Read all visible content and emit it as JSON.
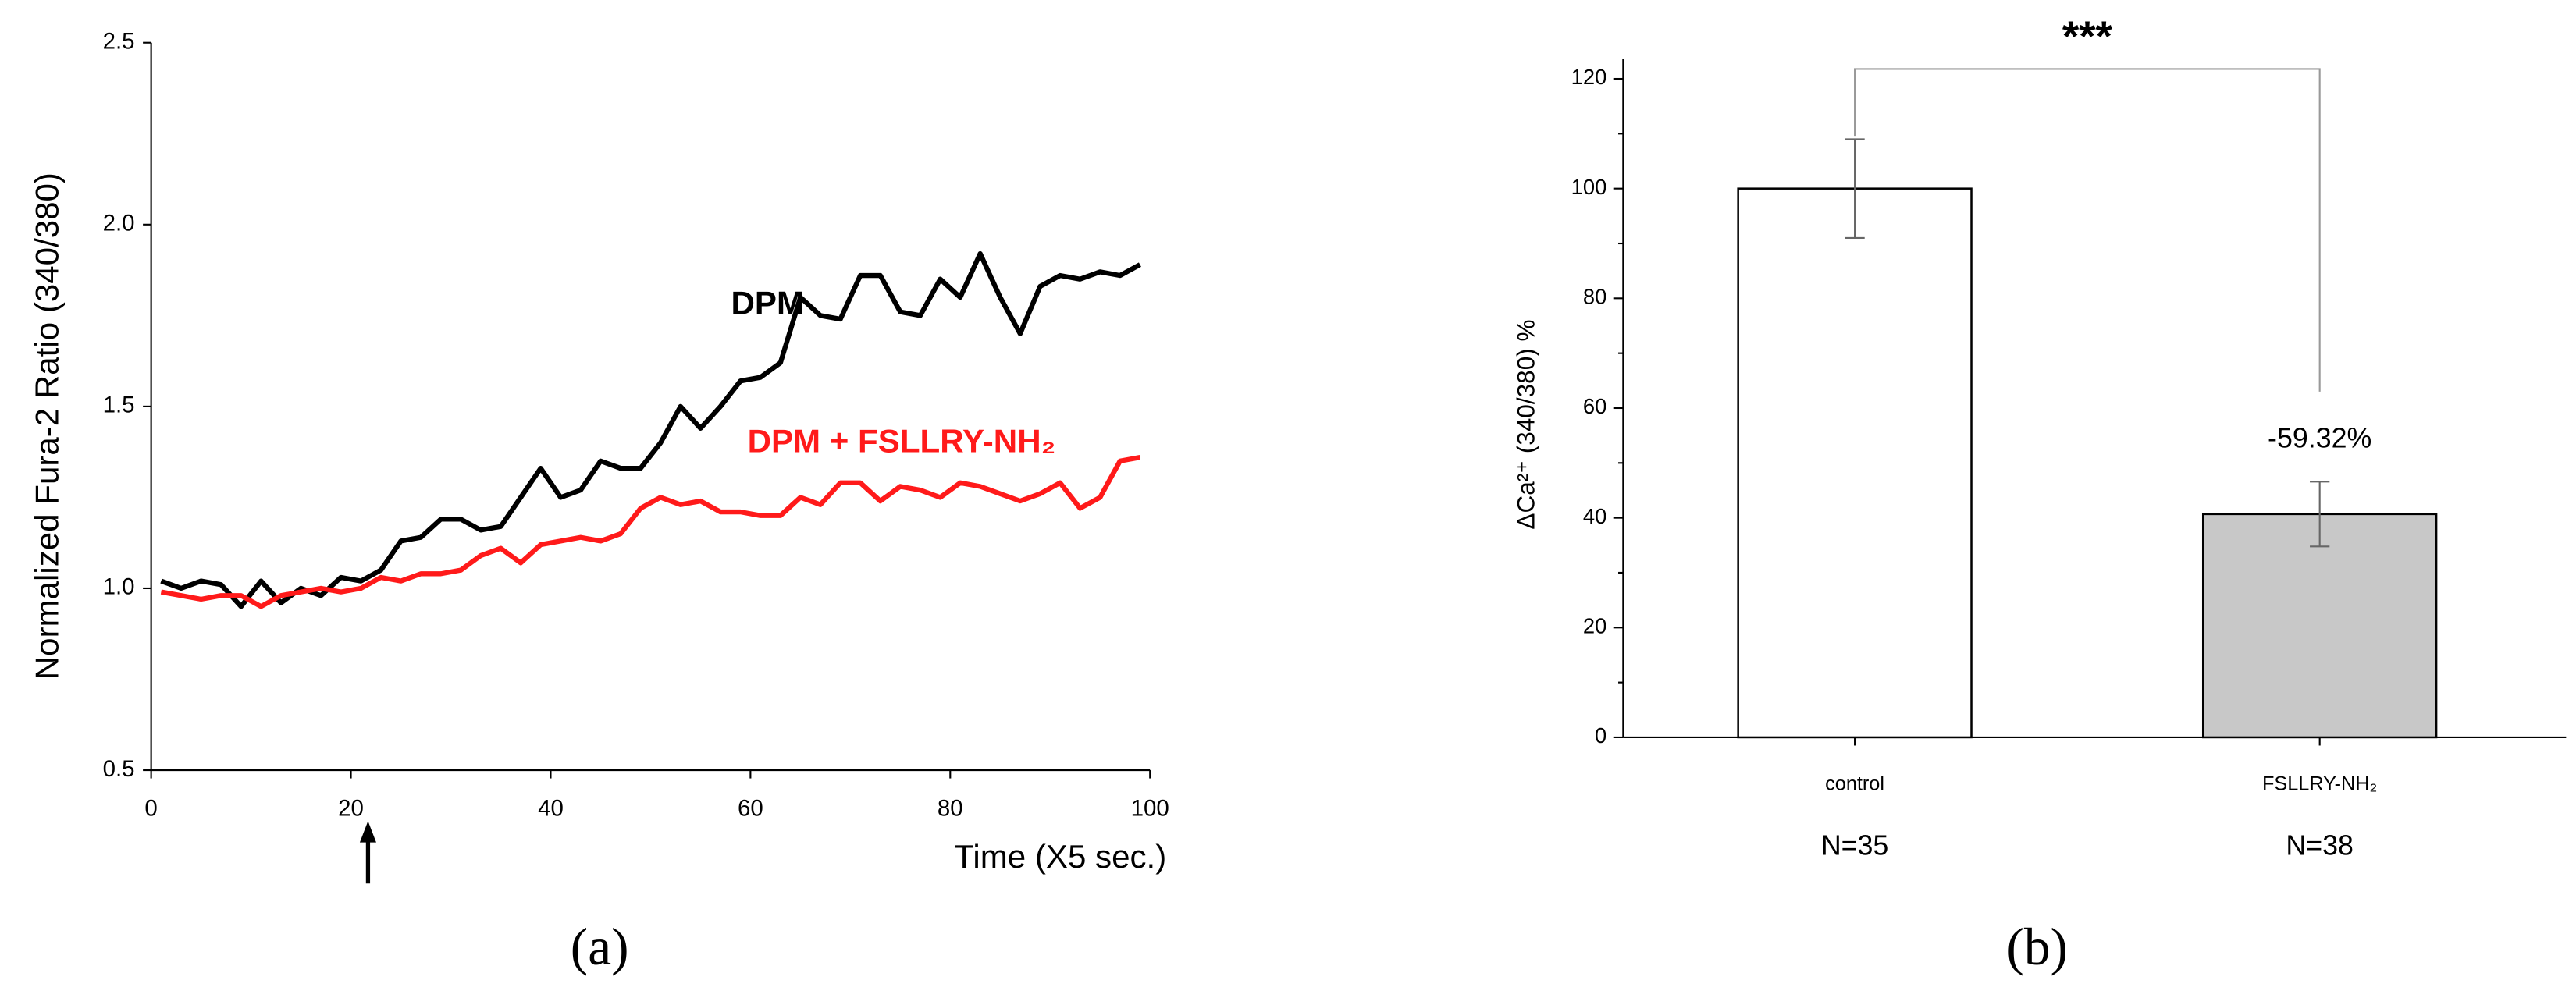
{
  "chart_data": [
    {
      "type": "line",
      "panel_label": "(a)",
      "xlabel": "Time (X5 sec.)",
      "ylabel": "Normalized Fura-2 Ratio (340/380)",
      "xlim": [
        0,
        100
      ],
      "ylim": [
        0.5,
        2.5
      ],
      "xticks": [
        0,
        20,
        40,
        60,
        80,
        100
      ],
      "yticks": [
        0.5,
        {
          "value": 1,
          "label": "1.0"
        },
        1.5,
        {
          "value": 2,
          "label": "2.0"
        },
        2.5
      ],
      "x": [
        1,
        3,
        5,
        7,
        9,
        11,
        13,
        15,
        17,
        19,
        21,
        23,
        25,
        27,
        29,
        31,
        33,
        35,
        37,
        39,
        41,
        43,
        45,
        47,
        49,
        51,
        53,
        55,
        57,
        59,
        61,
        63,
        65,
        67,
        69,
        71,
        73,
        75,
        77,
        79,
        81,
        83,
        85,
        87,
        89,
        91,
        93,
        95,
        97,
        99
      ],
      "series": [
        {
          "name": "DPM",
          "color": "#000000",
          "values": [
            1.02,
            1.0,
            1.02,
            1.01,
            0.95,
            1.02,
            0.96,
            1.0,
            0.98,
            1.03,
            1.02,
            1.05,
            1.13,
            1.14,
            1.19,
            1.19,
            1.16,
            1.17,
            1.25,
            1.33,
            1.25,
            1.27,
            1.35,
            1.33,
            1.33,
            1.4,
            1.5,
            1.44,
            1.5,
            1.57,
            1.58,
            1.62,
            1.8,
            1.75,
            1.74,
            1.86,
            1.86,
            1.76,
            1.75,
            1.85,
            1.8,
            1.92,
            1.8,
            1.7,
            1.83,
            1.86,
            1.85,
            1.87,
            1.86,
            1.89
          ]
        },
        {
          "name": "DPM + FSLLRY-NH₂",
          "color": "#ff1a1a",
          "values": [
            0.99,
            0.98,
            0.97,
            0.98,
            0.98,
            0.95,
            0.98,
            0.99,
            1.0,
            0.99,
            1.0,
            1.03,
            1.02,
            1.04,
            1.04,
            1.05,
            1.09,
            1.11,
            1.07,
            1.12,
            1.13,
            1.14,
            1.13,
            1.15,
            1.22,
            1.25,
            1.23,
            1.24,
            1.21,
            1.21,
            1.2,
            1.2,
            1.25,
            1.23,
            1.29,
            1.29,
            1.24,
            1.28,
            1.27,
            1.25,
            1.29,
            1.28,
            1.26,
            1.24,
            1.26,
            1.29,
            1.22,
            1.25,
            1.35,
            1.36
          ]
        }
      ]
    },
    {
      "type": "bar",
      "panel_label": "(b)",
      "ylabel": "ΔCa²⁺ (340/380)  %",
      "ylim": [
        0,
        120
      ],
      "yticks": [
        0,
        20,
        40,
        60,
        80,
        100,
        120
      ],
      "yminorticks": [
        10,
        30,
        50,
        70,
        90,
        110
      ],
      "categories": [
        "control",
        "FSLLRY-NH₂"
      ],
      "values": [
        100,
        40.68
      ],
      "errors": [
        9,
        5.9
      ],
      "colors": [
        "#ffffff",
        "#c8c8c8"
      ],
      "counts": [
        "N=35",
        "N=38"
      ],
      "significance": "***",
      "change_label": "-59.32%"
    }
  ]
}
